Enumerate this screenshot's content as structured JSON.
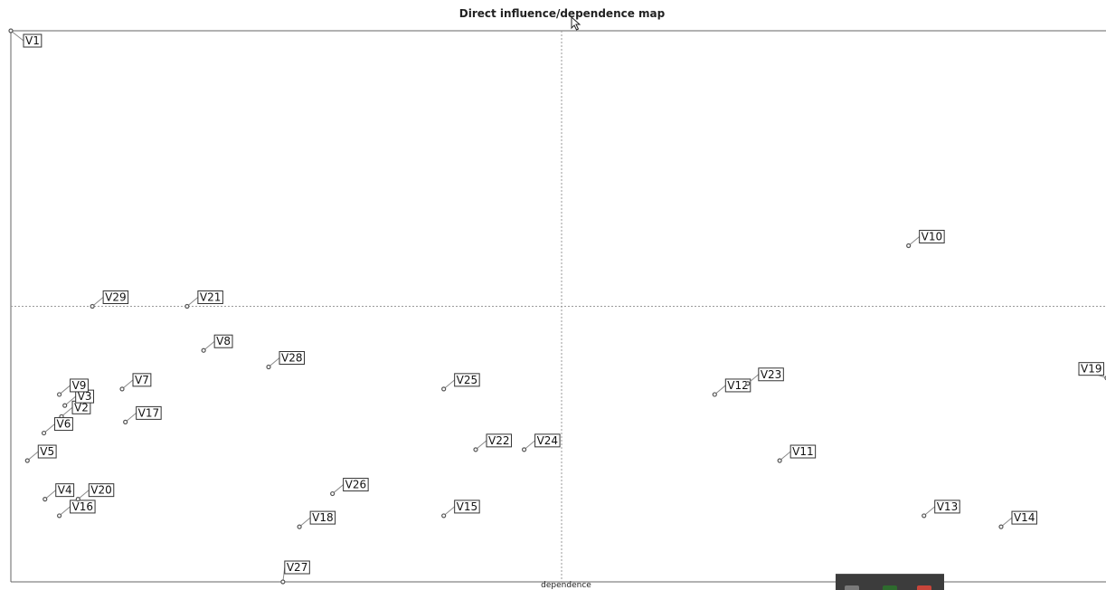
{
  "chart_data": {
    "type": "scatter",
    "title": "Direct influence/dependence map",
    "xlabel": "dependence",
    "ylabel": "",
    "grid": false,
    "legend": "none",
    "xlim": [
      0,
      100
    ],
    "ylim": [
      0,
      100
    ],
    "x_divider": 50,
    "y_divider": 50,
    "point_color": "#555555",
    "points": [
      {
        "label": "V1",
        "x": 0.0,
        "y": 100.0
      },
      {
        "label": "V2",
        "x": 4.6,
        "y": 30.0
      },
      {
        "label": "V3",
        "x": 4.9,
        "y": 32.0
      },
      {
        "label": "V4",
        "x": 3.1,
        "y": 15.0
      },
      {
        "label": "V5",
        "x": 1.5,
        "y": 22.0
      },
      {
        "label": "V6",
        "x": 3.0,
        "y": 27.0
      },
      {
        "label": "V7",
        "x": 10.1,
        "y": 35.0
      },
      {
        "label": "V8",
        "x": 17.5,
        "y": 42.0
      },
      {
        "label": "V9",
        "x": 4.4,
        "y": 34.0
      },
      {
        "label": "V10",
        "x": 81.5,
        "y": 61.0
      },
      {
        "label": "V11",
        "x": 69.8,
        "y": 22.0
      },
      {
        "label": "V12",
        "x": 63.9,
        "y": 34.0
      },
      {
        "label": "V13",
        "x": 82.9,
        "y": 12.0
      },
      {
        "label": "V14",
        "x": 89.9,
        "y": 10.0
      },
      {
        "label": "V15",
        "x": 39.3,
        "y": 12.0
      },
      {
        "label": "V16",
        "x": 4.4,
        "y": 12.0
      },
      {
        "label": "V17",
        "x": 10.4,
        "y": 29.0
      },
      {
        "label": "V18",
        "x": 26.2,
        "y": 10.0
      },
      {
        "label": "V19",
        "x": 99.5,
        "y": 37.0
      },
      {
        "label": "V20",
        "x": 6.1,
        "y": 15.0
      },
      {
        "label": "V21",
        "x": 16.0,
        "y": 50.0
      },
      {
        "label": "V22",
        "x": 42.2,
        "y": 24.0
      },
      {
        "label": "V23",
        "x": 66.9,
        "y": 36.0
      },
      {
        "label": "V24",
        "x": 46.6,
        "y": 24.0
      },
      {
        "label": "V25",
        "x": 39.3,
        "y": 35.0
      },
      {
        "label": "V26",
        "x": 29.2,
        "y": 16.0
      },
      {
        "label": "V27",
        "x": 24.7,
        "y": 0.0
      },
      {
        "label": "V28",
        "x": 23.4,
        "y": 39.0
      },
      {
        "label": "V29",
        "x": 7.4,
        "y": 50.0
      }
    ]
  }
}
